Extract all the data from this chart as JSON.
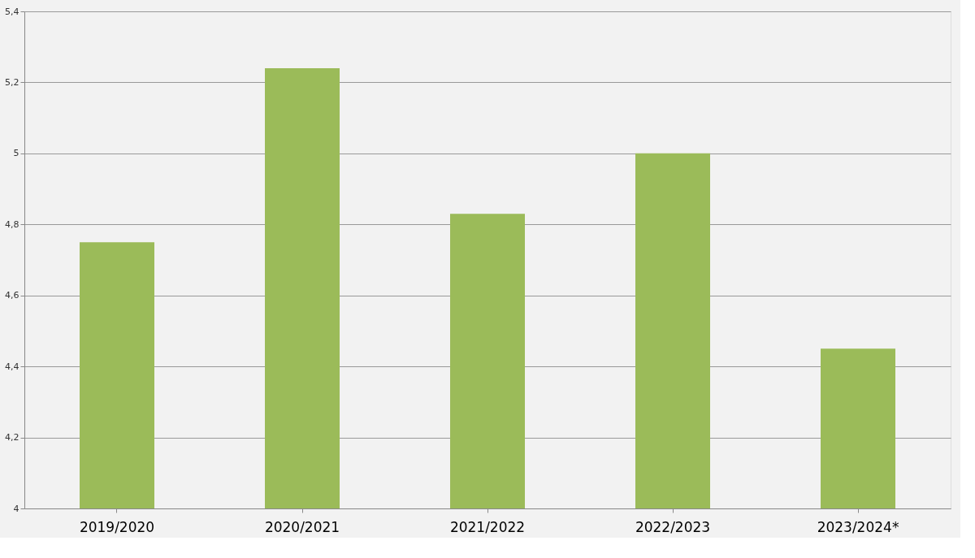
{
  "chart_data": {
    "type": "bar",
    "categories": [
      "2019/2020",
      "2020/2021",
      "2021/2022",
      "2022/2023",
      "2023/2024*"
    ],
    "values": [
      4.75,
      5.24,
      4.83,
      5.0,
      4.45
    ],
    "color": "#9bbb59",
    "ylim": [
      4,
      5.4
    ],
    "yticks": [
      4,
      {
        "value": 4.2,
        "label": "4,2"
      },
      {
        "value": 4.4,
        "label": "4,4"
      },
      {
        "value": 4.6,
        "label": "4,6"
      },
      {
        "value": 4.8,
        "label": "4,8"
      },
      5,
      {
        "value": 5.2,
        "label": "5,2"
      },
      {
        "value": 5.4,
        "label": "5,4"
      }
    ],
    "grid": "y"
  }
}
